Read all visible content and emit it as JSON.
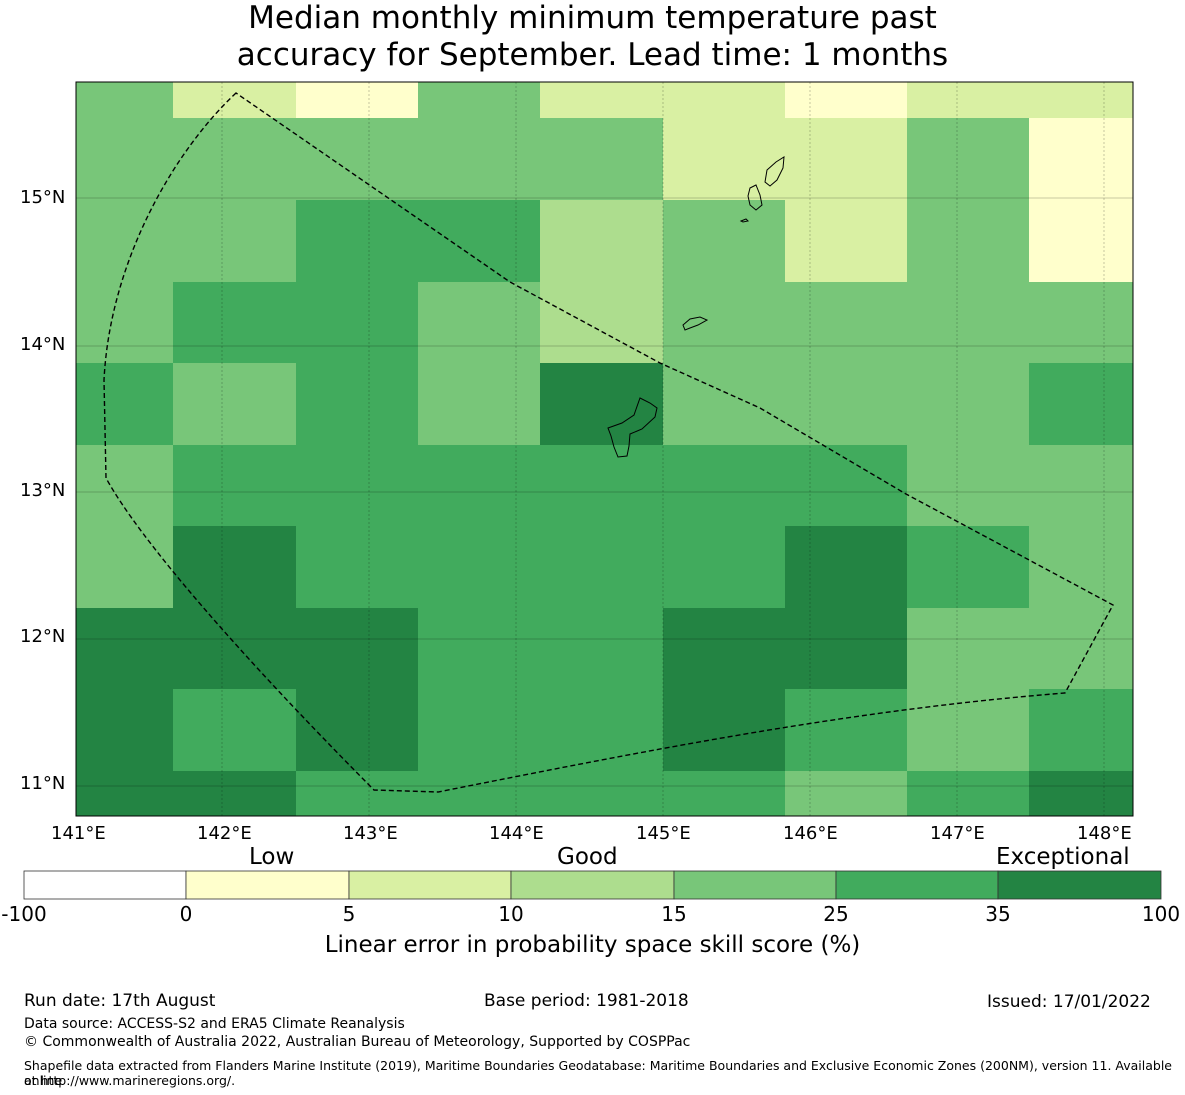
{
  "title_line1": "Median monthly minimum temperature past",
  "title_line2": "accuracy for September. Lead time: 1 months",
  "map": {
    "lon_labels": [
      "141°E",
      "142°E",
      "143°E",
      "144°E",
      "145°E",
      "146°E",
      "147°E",
      "148°E"
    ],
    "lat_labels": [
      "15°N",
      "14°N",
      "13°N",
      "12°N",
      "11°N"
    ],
    "grid_classes": [
      [
        4,
        2,
        1,
        4,
        2,
        2,
        1,
        2,
        2
      ],
      [
        4,
        4,
        4,
        4,
        4,
        2,
        2,
        4,
        1
      ],
      [
        4,
        4,
        5,
        5,
        3,
        4,
        2,
        4,
        1
      ],
      [
        4,
        5,
        5,
        4,
        3,
        4,
        4,
        4,
        4
      ],
      [
        5,
        4,
        5,
        4,
        6,
        4,
        4,
        4,
        5
      ],
      [
        4,
        5,
        5,
        5,
        5,
        5,
        5,
        4,
        4
      ],
      [
        4,
        6,
        5,
        5,
        5,
        5,
        6,
        5,
        4
      ],
      [
        6,
        6,
        6,
        5,
        5,
        6,
        6,
        4,
        4
      ],
      [
        6,
        5,
        6,
        5,
        5,
        6,
        5,
        4,
        5
      ],
      [
        6,
        6,
        5,
        5,
        5,
        5,
        4,
        5,
        6
      ]
    ]
  },
  "colorbar": {
    "category_low": "Low",
    "category_good": "Good",
    "category_exceptional": "Exceptional",
    "colors": [
      "#ffffff",
      "#ffffcc",
      "#d9f0a3",
      "#addd8e",
      "#78c679",
      "#41ab5d",
      "#238443"
    ],
    "ticks": [
      "-100",
      "0",
      "5",
      "10",
      "15",
      "25",
      "35",
      "100"
    ],
    "label": "Linear error in probability space skill score (%)"
  },
  "footer": {
    "run_date": "Run date: 17th August",
    "base_period": "Base period: 1981-2018",
    "issued": "Issued: 17/01/2022",
    "data_source": "Data source: ACCESS-S2 and ERA5 Climate Reanalysis",
    "copyright": "© Commonwealth of Australia 2022, Australian Bureau of Meteorology, Supported by COSPPac",
    "shapefile_line1": "Shapefile data extracted from Flanders Marine Institute (2019), Maritime Boundaries Geodatabase: Maritime Boundaries and Exclusive Economic Zones (200NM), version 11. Available online",
    "shapefile_line2": "at http://www.marineregions.org/."
  }
}
